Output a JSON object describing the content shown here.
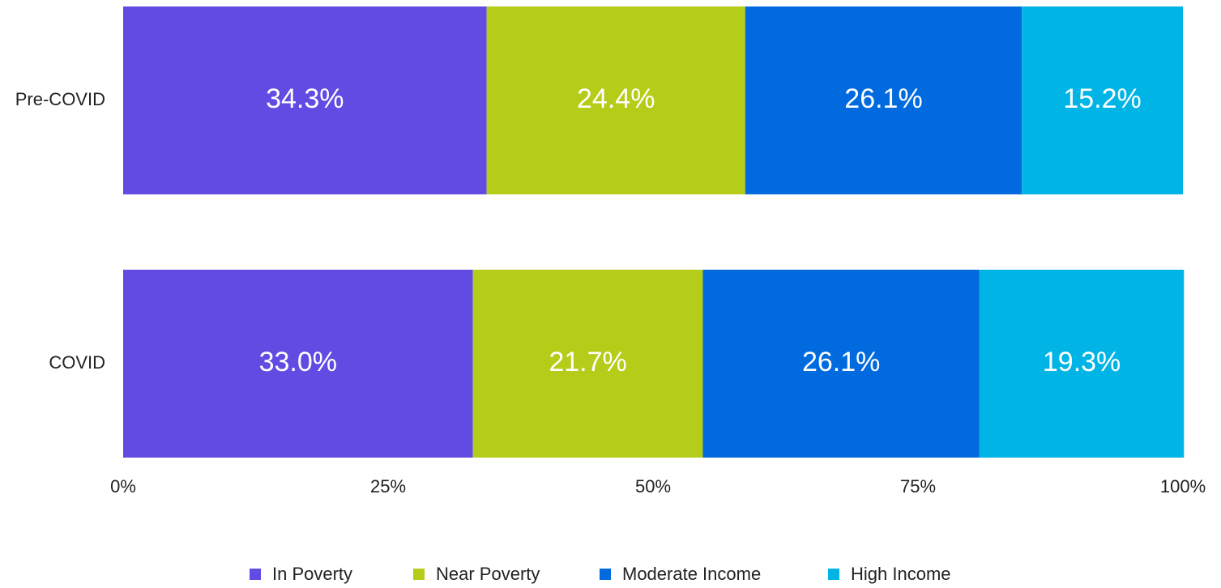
{
  "chart_data": {
    "type": "stacked-barh",
    "categories": [
      "Pre-COVID",
      "COVID"
    ],
    "series": [
      {
        "name": "In Poverty",
        "color": "#604be3",
        "values": [
          34.3,
          33.0
        ],
        "value_labels": [
          "34.3%",
          "33.0%"
        ]
      },
      {
        "name": "Near Poverty",
        "color": "#b5cc18",
        "values": [
          24.4,
          21.7
        ],
        "value_labels": [
          "24.4%",
          "21.7%"
        ]
      },
      {
        "name": "Moderate Income",
        "color": "#006ade",
        "values": [
          26.1,
          26.1
        ],
        "value_labels": [
          "26.1%",
          "26.1%"
        ]
      },
      {
        "name": "High Income",
        "color": "#00b5e6",
        "values": [
          15.2,
          19.3
        ],
        "value_labels": [
          "15.2%",
          "19.3%"
        ]
      }
    ],
    "xlim": [
      0,
      100
    ],
    "xticks": [
      {
        "value": 0,
        "label": "0%"
      },
      {
        "value": 25,
        "label": "25%"
      },
      {
        "value": 50,
        "label": "50%"
      },
      {
        "value": 75,
        "label": "75%"
      },
      {
        "value": 100,
        "label": "100%"
      }
    ],
    "legend": "bottom"
  }
}
